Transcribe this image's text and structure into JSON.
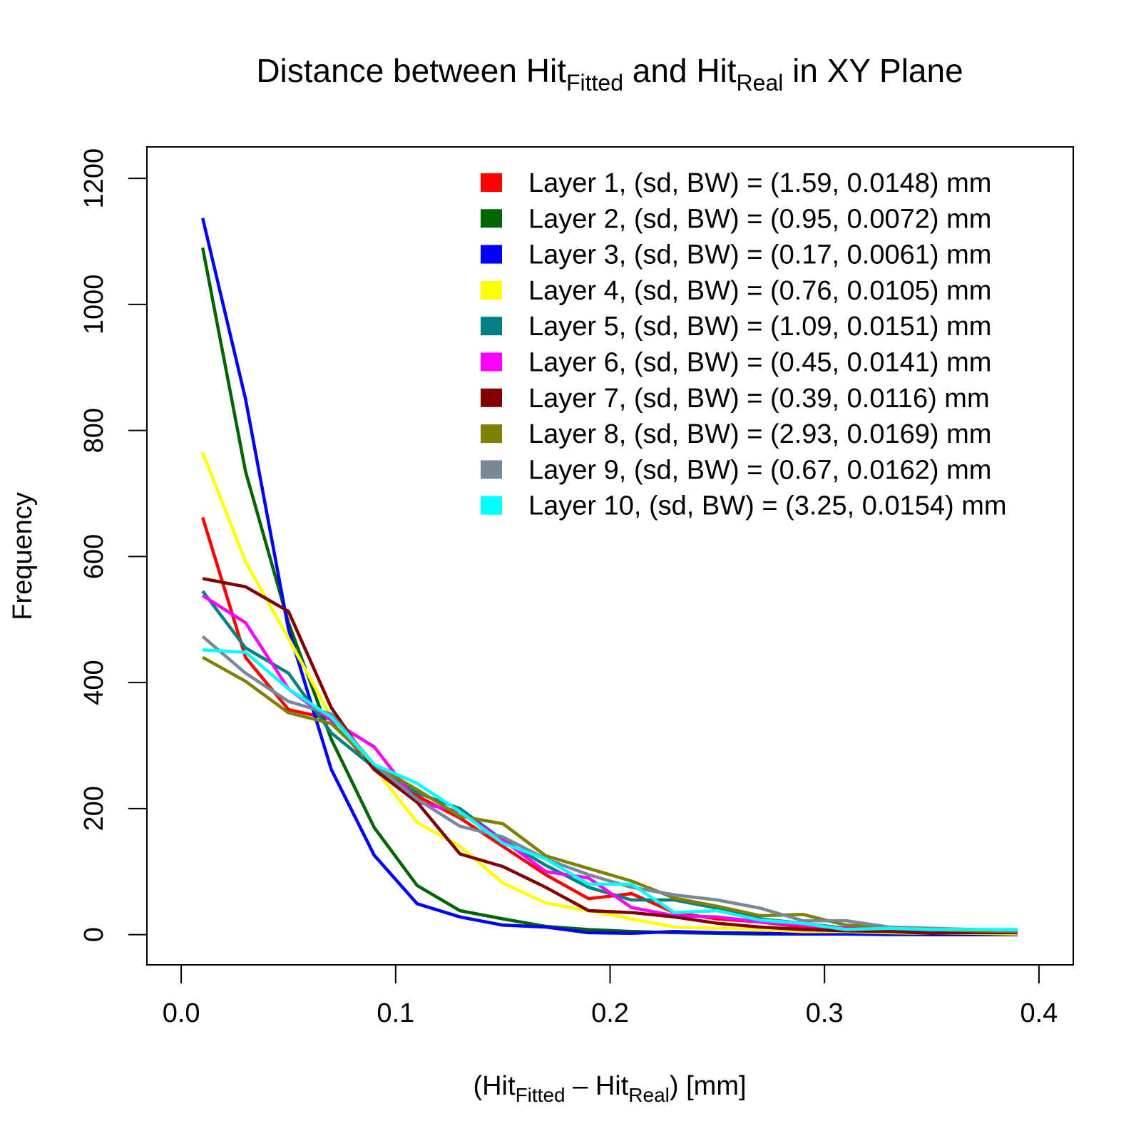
{
  "chart_data": {
    "type": "line",
    "title": {
      "part1": "Distance between Hit",
      "sub1": "Fitted",
      "part2": " and Hit",
      "sub2": "Real",
      "part3": " in XY Plane"
    },
    "xlabel": {
      "part1": "(Hit",
      "sub1": "Fitted",
      "part2": " – Hit",
      "sub2": "Real",
      "part3": ")  [mm]"
    },
    "ylabel": "Frequency",
    "xlim": [
      -0.016,
      0.416
    ],
    "ylim": [
      -48,
      1250
    ],
    "xticks": [
      0.0,
      0.1,
      0.2,
      0.3,
      0.4
    ],
    "xtick_labels": [
      "0.0",
      "0.1",
      "0.2",
      "0.3",
      "0.4"
    ],
    "yticks": [
      0,
      200,
      400,
      600,
      800,
      1000,
      1200
    ],
    "ytick_labels": [
      "0",
      "200",
      "400",
      "600",
      "800",
      "1000",
      "1200"
    ],
    "grid": false,
    "legend_position": "top-right",
    "x": [
      0.01,
      0.03,
      0.05,
      0.07,
      0.09,
      0.11,
      0.13,
      0.15,
      0.17,
      0.19,
      0.21,
      0.23,
      0.25,
      0.27,
      0.29,
      0.31,
      0.33,
      0.35,
      0.37,
      0.39
    ],
    "series": [
      {
        "label": "Layer  1, (sd, BW) = (1.59, 0.0148) mm",
        "color": "#FF0000",
        "values": [
          662,
          440,
          357,
          342,
          262,
          220,
          185,
          140,
          95,
          57,
          65,
          35,
          25,
          20,
          12,
          8,
          5,
          3,
          2,
          2
        ]
      },
      {
        "label": "Layer  2, (sd, BW) = (0.95, 0.0072) mm",
        "color": "#006400",
        "values": [
          1090,
          735,
          495,
          310,
          170,
          78,
          38,
          25,
          13,
          8,
          5,
          3,
          2,
          1,
          1,
          1,
          0,
          0,
          0,
          0
        ]
      },
      {
        "label": "Layer  3, (sd, BW) = (0.17, 0.0061) mm",
        "color": "#0000FF",
        "values": [
          1137,
          850,
          485,
          262,
          126,
          49,
          28,
          15,
          12,
          3,
          2,
          5,
          3,
          2,
          1,
          1,
          1,
          0,
          0,
          0
        ]
      },
      {
        "label": "Layer  4, (sd, BW) = (0.76, 0.0105) mm",
        "color": "#FFFF00",
        "values": [
          765,
          592,
          470,
          345,
          265,
          178,
          140,
          82,
          50,
          38,
          25,
          12,
          10,
          8,
          5,
          5,
          3,
          2,
          2,
          1
        ]
      },
      {
        "label": "Layer  5, (sd, BW) = (1.09, 0.0151) mm",
        "color": "#008080",
        "values": [
          545,
          455,
          415,
          320,
          265,
          225,
          200,
          150,
          110,
          75,
          55,
          55,
          42,
          25,
          18,
          10,
          8,
          6,
          5,
          4
        ]
      },
      {
        "label": "Layer  6, (sd, BW) = (0.45, 0.0141) mm",
        "color": "#FF00FF",
        "values": [
          538,
          495,
          390,
          340,
          298,
          210,
          195,
          150,
          100,
          90,
          43,
          30,
          28,
          20,
          15,
          10,
          10,
          8,
          6,
          5
        ]
      },
      {
        "label": "Layer  7, (sd, BW) = (0.39, 0.0116) mm",
        "color": "#800000",
        "values": [
          565,
          552,
          513,
          360,
          262,
          210,
          128,
          108,
          75,
          38,
          35,
          28,
          18,
          12,
          8,
          6,
          5,
          2,
          3,
          3
        ]
      },
      {
        "label": "Layer  8, (sd, BW) = (2.93, 0.0169) mm",
        "color": "#808000",
        "values": [
          440,
          402,
          352,
          335,
          270,
          230,
          188,
          176,
          125,
          105,
          85,
          58,
          45,
          30,
          32,
          15,
          12,
          8,
          6,
          5
        ]
      },
      {
        "label": "Layer  9, (sd, BW) = (0.67, 0.0162) mm",
        "color": "#778899",
        "values": [
          473,
          415,
          370,
          350,
          270,
          215,
          172,
          155,
          120,
          95,
          75,
          63,
          55,
          42,
          22,
          22,
          12,
          10,
          8,
          6
        ]
      },
      {
        "label": "Layer 10, (sd, BW) = (3.25, 0.0154) mm",
        "color": "#00FFFF",
        "values": [
          452,
          448,
          390,
          345,
          270,
          240,
          195,
          145,
          120,
          80,
          80,
          35,
          38,
          23,
          18,
          8,
          10,
          8,
          8,
          8
        ]
      }
    ]
  }
}
